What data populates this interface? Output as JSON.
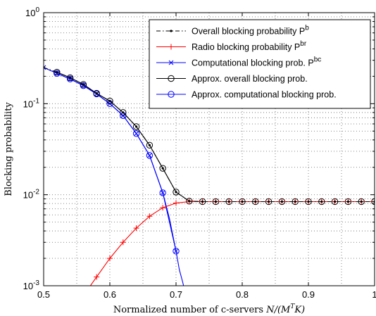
{
  "chart_data": {
    "type": "line",
    "xlabel_prefix": "Normalized number of c-servers",
    "xlabel_math": "N/(M^T K)",
    "ylabel": "Blocking probability",
    "xlim": [
      0.5,
      1.0
    ],
    "ylim": [
      0.001,
      1
    ],
    "yscale": "log",
    "grid": true,
    "legend_position": "top-right",
    "xticks": [
      0.5,
      0.6,
      0.7,
      0.8,
      0.9,
      1.0
    ],
    "xtick_labels": [
      "0.5",
      "0.6",
      "0.7",
      "0.8",
      "0.9",
      "1"
    ],
    "yticks": [
      0.001,
      0.01,
      0.1,
      1
    ],
    "ytick_labels": [
      {
        "base": "10",
        "exp": "-3"
      },
      {
        "base": "10",
        "exp": "-2"
      },
      {
        "base": "10",
        "exp": "-1"
      },
      {
        "base": "10",
        "exp": "0"
      }
    ],
    "series": [
      {
        "name": "Overall blocking probability P",
        "name_sup": "b",
        "color": "#000000",
        "line": "dashdot",
        "marker": "dot",
        "x": [
          0.5,
          0.52,
          0.54,
          0.56,
          0.58,
          0.6,
          0.62,
          0.64,
          0.66,
          0.68,
          0.7,
          0.72,
          0.74,
          0.76,
          0.78,
          0.8,
          0.82,
          0.84,
          0.86,
          0.88,
          0.9,
          0.92,
          0.94,
          0.96,
          0.98,
          1.0
        ],
        "y": [
          0.25,
          0.222,
          0.193,
          0.163,
          0.13,
          0.107,
          0.08,
          0.056,
          0.035,
          0.0195,
          0.0107,
          0.0085,
          0.0084,
          0.0084,
          0.0084,
          0.0084,
          0.0084,
          0.0084,
          0.0084,
          0.0084,
          0.0084,
          0.0084,
          0.0084,
          0.0084,
          0.0084,
          0.0084
        ]
      },
      {
        "name": "Radio blocking probability P",
        "name_sup": "br",
        "color": "#ff0000",
        "line": "solid",
        "marker": "plus",
        "x": [
          0.56,
          0.58,
          0.6,
          0.62,
          0.64,
          0.66,
          0.68,
          0.7,
          0.72,
          0.74,
          0.76,
          0.78,
          0.8,
          0.82,
          0.84,
          0.86,
          0.88,
          0.9,
          0.92,
          0.94,
          0.96,
          0.98,
          1.0
        ],
        "y": [
          0.00078,
          0.00125,
          0.002,
          0.003,
          0.0043,
          0.0058,
          0.0072,
          0.0081,
          0.0084,
          0.0084,
          0.0084,
          0.0084,
          0.0084,
          0.0084,
          0.0084,
          0.0084,
          0.0084,
          0.0084,
          0.0084,
          0.0084,
          0.0084,
          0.0084,
          0.0084
        ],
        "marker_x": [
          0.58,
          0.6,
          0.62,
          0.64,
          0.66,
          0.68,
          0.7,
          0.72,
          0.74,
          0.76,
          0.78,
          0.8,
          0.82,
          0.84,
          0.86,
          0.88,
          0.9,
          0.92,
          0.94,
          0.96,
          0.98,
          1.0
        ]
      },
      {
        "name": "Computational blocking prob. P",
        "name_sup": "bc",
        "color": "#0000ff",
        "line": "solid",
        "marker": "cross",
        "x": [
          0.5,
          0.52,
          0.54,
          0.56,
          0.58,
          0.6,
          0.62,
          0.64,
          0.66,
          0.68,
          0.69,
          0.7,
          0.705,
          0.71,
          0.715
        ],
        "y": [
          0.25,
          0.215,
          0.187,
          0.158,
          0.128,
          0.1,
          0.074,
          0.047,
          0.027,
          0.0105,
          0.0055,
          0.0024,
          0.0015,
          0.0011,
          0.00078
        ],
        "marker_x": [
          0.5,
          0.52,
          0.54,
          0.56,
          0.58,
          0.6,
          0.62,
          0.64,
          0.66,
          0.68,
          0.7
        ]
      },
      {
        "name": "Approx. overall blocking prob.",
        "name_sup": "",
        "color": "#000000",
        "line": "solid",
        "marker": "circle",
        "x": [
          0.52,
          0.54,
          0.56,
          0.58,
          0.6,
          0.62,
          0.64,
          0.66,
          0.68,
          0.7,
          0.72,
          0.74,
          0.76,
          0.78,
          0.8,
          0.82,
          0.84,
          0.86,
          0.88,
          0.9,
          0.92,
          0.94,
          0.96,
          0.98,
          1.0
        ],
        "y": [
          0.222,
          0.193,
          0.163,
          0.13,
          0.107,
          0.08,
          0.056,
          0.035,
          0.0195,
          0.0107,
          0.0085,
          0.0084,
          0.0084,
          0.0084,
          0.0084,
          0.0084,
          0.0084,
          0.0084,
          0.0084,
          0.0084,
          0.0084,
          0.0084,
          0.0084,
          0.0084,
          0.0084
        ]
      },
      {
        "name": "Approx. computational blocking prob.",
        "name_sup": "",
        "color": "#0000ff",
        "line": "solid",
        "marker": "circle",
        "x": [
          0.52,
          0.54,
          0.56,
          0.58,
          0.6,
          0.62,
          0.64,
          0.66,
          0.68,
          0.7
        ],
        "y": [
          0.215,
          0.187,
          0.158,
          0.128,
          0.1,
          0.074,
          0.047,
          0.027,
          0.0105,
          0.0024
        ]
      }
    ]
  }
}
